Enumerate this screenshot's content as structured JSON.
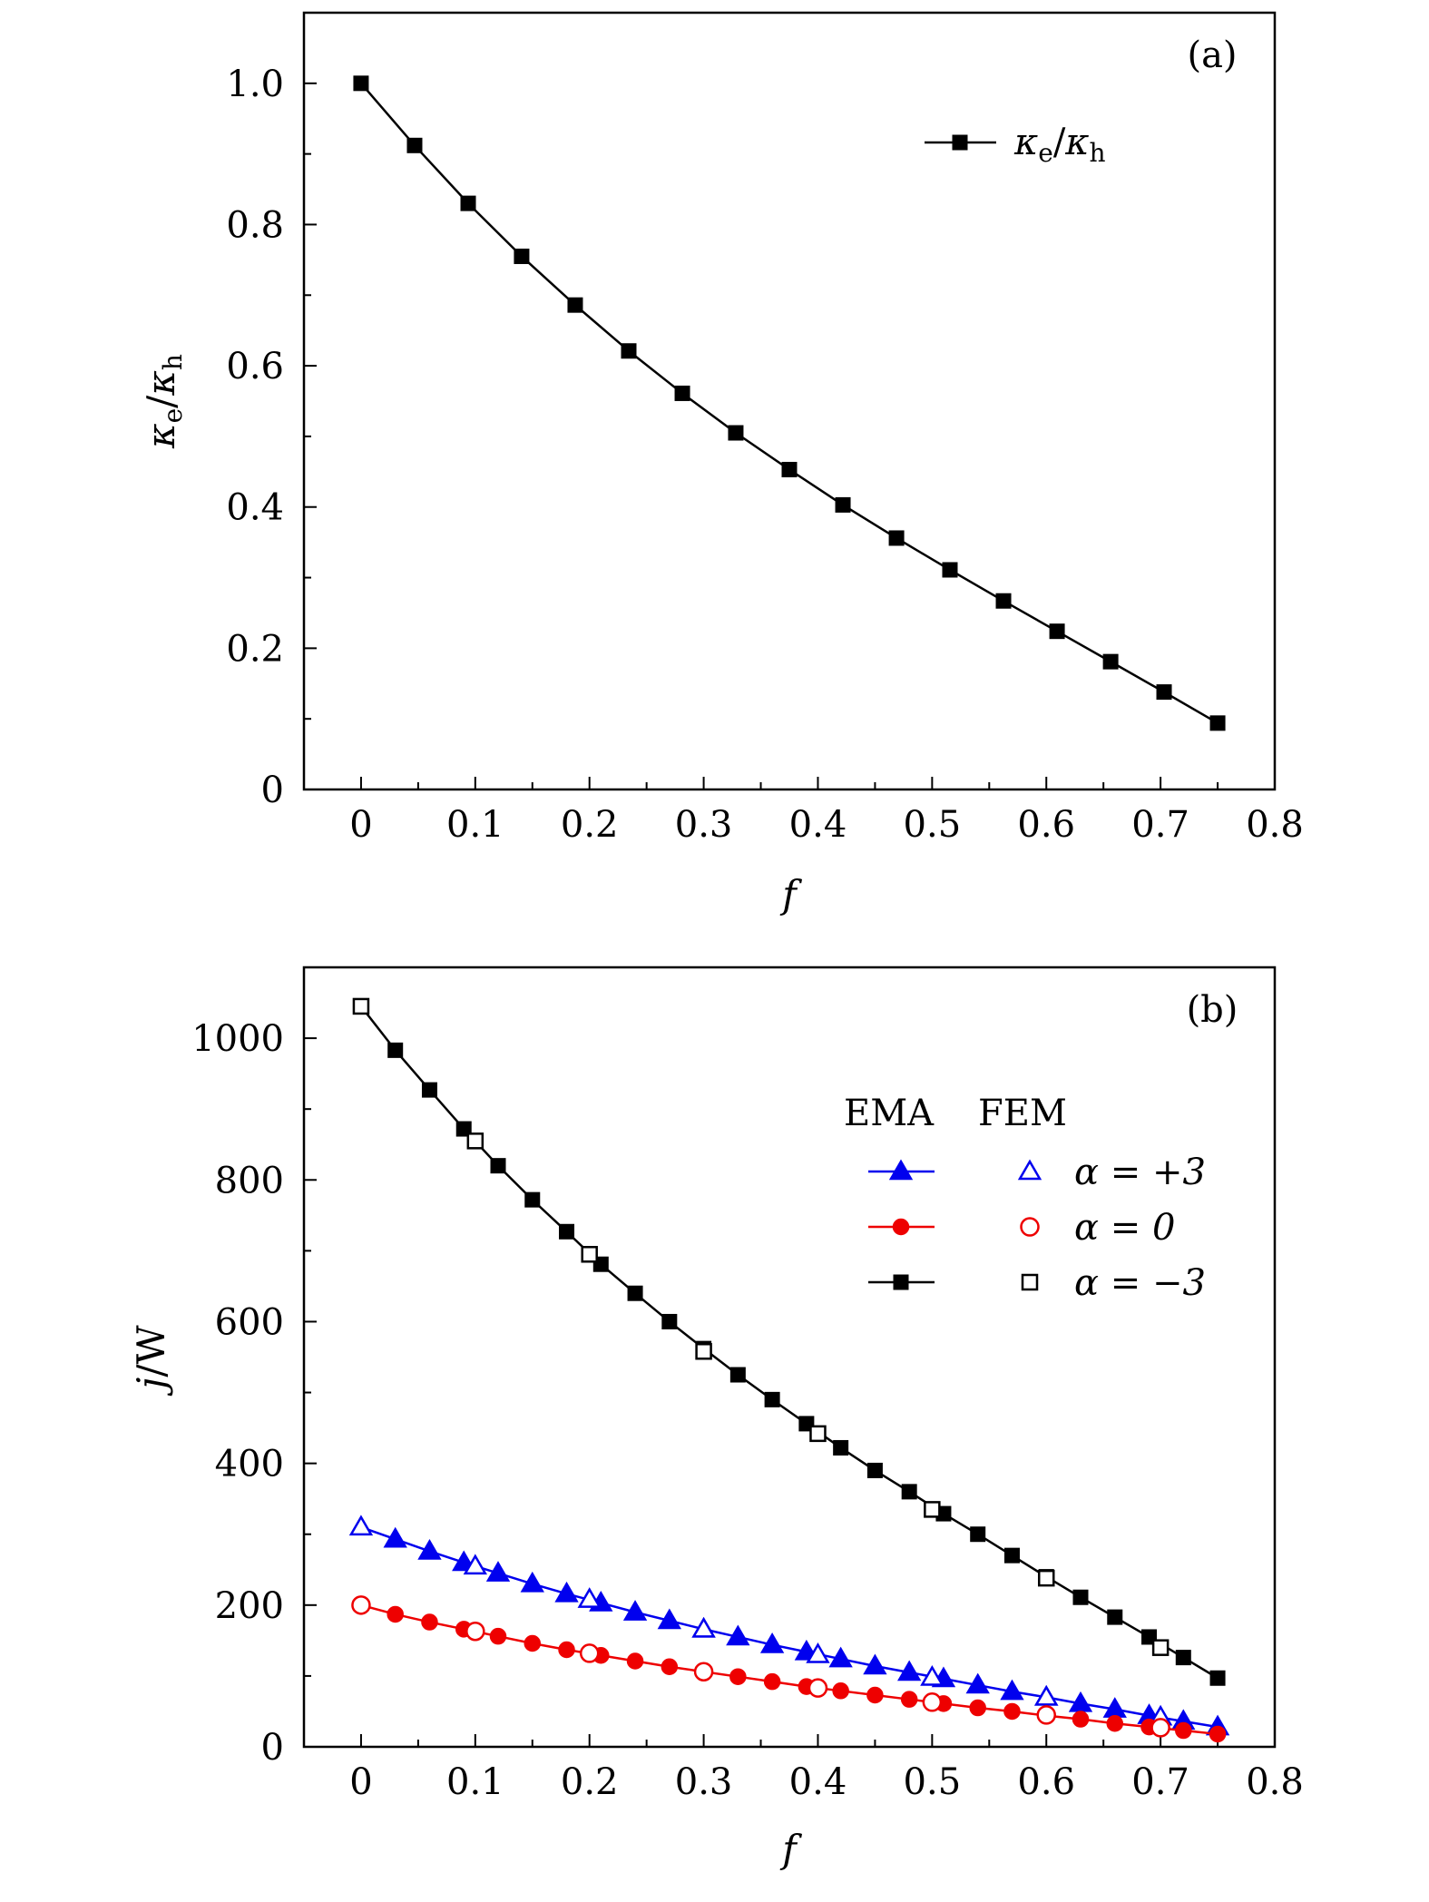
{
  "chart_data": [
    {
      "type": "line",
      "panel_label": "(a)",
      "xlabel": "f",
      "ylabel": {
        "main1": "κ",
        "sub1": "e",
        "slash": "/",
        "main2": "κ",
        "sub2": "h"
      },
      "xlim": [
        -0.05,
        0.8
      ],
      "ylim": [
        0,
        1.1
      ],
      "xticks": [
        "0",
        "0.1",
        "0.2",
        "0.3",
        "0.4",
        "0.5",
        "0.6",
        "0.7",
        "0.8"
      ],
      "xtick_values": [
        0,
        0.1,
        0.2,
        0.3,
        0.4,
        0.5,
        0.6,
        0.7,
        0.8
      ],
      "yticks": [
        "0",
        "0.2",
        "0.4",
        "0.6",
        "0.8",
        "1.0"
      ],
      "ytick_values": [
        0,
        0.2,
        0.4,
        0.6,
        0.8,
        1.0
      ],
      "legend_position": "top-right",
      "series": [
        {
          "name": "κe/κh",
          "legend": {
            "main1": "κ",
            "sub1": "e",
            "slash": "/",
            "main2": "κ",
            "sub2": "h"
          },
          "color": "#000000",
          "marker": "filled-square",
          "x": [
            0,
            0.0469,
            0.0938,
            0.1406,
            0.1875,
            0.2344,
            0.2813,
            0.3281,
            0.375,
            0.4219,
            0.4688,
            0.5156,
            0.5625,
            0.6094,
            0.6563,
            0.7031,
            0.75
          ],
          "y": [
            1.0,
            0.912,
            0.83,
            0.755,
            0.686,
            0.621,
            0.561,
            0.505,
            0.453,
            0.403,
            0.356,
            0.311,
            0.267,
            0.224,
            0.181,
            0.138,
            0.094
          ]
        }
      ]
    },
    {
      "type": "line",
      "panel_label": "(b)",
      "xlabel": "f",
      "ylabel": {
        "main": "j",
        "rest": "/W"
      },
      "xlim": [
        -0.05,
        0.8
      ],
      "ylim": [
        0,
        1100
      ],
      "xticks": [
        "0",
        "0.1",
        "0.2",
        "0.3",
        "0.4",
        "0.5",
        "0.6",
        "0.7",
        "0.8"
      ],
      "xtick_values": [
        0,
        0.1,
        0.2,
        0.3,
        0.4,
        0.5,
        0.6,
        0.7,
        0.8
      ],
      "yticks": [
        "0",
        "200",
        "400",
        "600",
        "800",
        "1000"
      ],
      "ytick_values": [
        0,
        200,
        400,
        600,
        800,
        1000
      ],
      "legend_position": "top-right",
      "legend_header": {
        "ema": "EMA",
        "fem": "FEM"
      },
      "series": [
        {
          "name": "α = +3",
          "color": "#0000ee",
          "marker": "triangle",
          "ema_x": [
            0,
            0.03,
            0.06,
            0.09,
            0.12,
            0.15,
            0.18,
            0.21,
            0.24,
            0.27,
            0.3,
            0.33,
            0.36,
            0.39,
            0.42,
            0.45,
            0.48,
            0.51,
            0.54,
            0.57,
            0.6,
            0.63,
            0.66,
            0.69,
            0.72,
            0.75
          ],
          "ema_y": [
            310,
            293,
            276,
            260,
            245,
            230,
            216,
            203,
            190,
            178,
            166,
            155,
            144,
            134,
            124,
            114,
            105,
            96,
            87,
            78,
            70,
            61,
            53,
            44,
            36,
            28
          ],
          "fem_x": [
            0,
            0.1,
            0.2,
            0.3,
            0.4,
            0.5,
            0.6,
            0.7
          ],
          "fem_y": [
            310,
            255,
            208,
            166,
            130,
            98,
            70,
            42
          ]
        },
        {
          "name": "α = 0",
          "color": "#ee0000",
          "marker": "circle",
          "ema_x": [
            0,
            0.03,
            0.06,
            0.09,
            0.12,
            0.15,
            0.18,
            0.21,
            0.24,
            0.27,
            0.3,
            0.33,
            0.36,
            0.39,
            0.42,
            0.45,
            0.48,
            0.51,
            0.54,
            0.57,
            0.6,
            0.63,
            0.66,
            0.69,
            0.72,
            0.75
          ],
          "ema_y": [
            200,
            187,
            176,
            166,
            156,
            146,
            137,
            129,
            121,
            113,
            106,
            99,
            92,
            85,
            79,
            73,
            67,
            61,
            55,
            50,
            44,
            39,
            33,
            28,
            23,
            18
          ],
          "fem_x": [
            0,
            0.1,
            0.2,
            0.3,
            0.4,
            0.5,
            0.6,
            0.7
          ],
          "fem_y": [
            200,
            163,
            132,
            106,
            83,
            63,
            45,
            27
          ]
        },
        {
          "name": "α = −3",
          "color": "#000000",
          "marker": "square",
          "ema_x": [
            0,
            0.03,
            0.06,
            0.09,
            0.12,
            0.15,
            0.18,
            0.21,
            0.24,
            0.27,
            0.3,
            0.33,
            0.36,
            0.39,
            0.42,
            0.45,
            0.48,
            0.51,
            0.54,
            0.57,
            0.6,
            0.63,
            0.66,
            0.69,
            0.72,
            0.75
          ],
          "ema_y": [
            1045,
            983,
            927,
            872,
            820,
            772,
            727,
            681,
            640,
            600,
            562,
            525,
            490,
            456,
            422,
            390,
            360,
            329,
            300,
            270,
            240,
            211,
            183,
            155,
            126,
            97
          ],
          "fem_x": [
            0,
            0.1,
            0.2,
            0.3,
            0.4,
            0.5,
            0.6,
            0.7
          ],
          "fem_y": [
            1045,
            855,
            695,
            558,
            442,
            335,
            238,
            140
          ]
        }
      ]
    }
  ]
}
